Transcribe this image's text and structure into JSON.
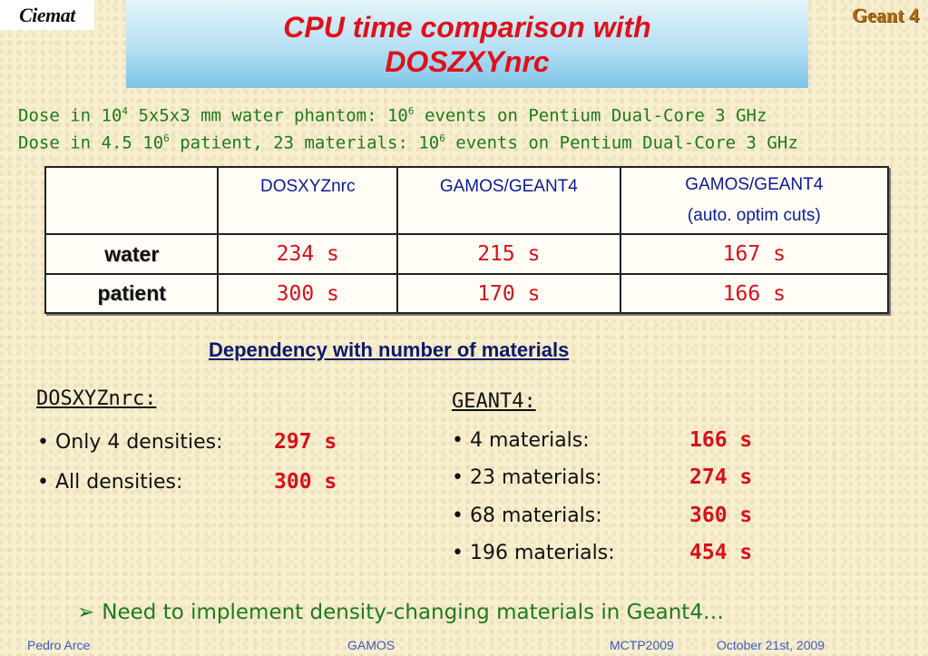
{
  "logo": "Ciemat",
  "geant_label": "Geant 4",
  "title": {
    "line1": "CPU time comparison with",
    "line2": "DOSZXYnrc"
  },
  "dose_lines": [
    {
      "pre": "Dose in 10",
      "sup": "4",
      "mid": " 5x5x3 mm water phantom: 10",
      "sup2": "6",
      "post": " events on Pentium Dual-Core 3 GHz"
    },
    {
      "pre": "Dose in 4.5 10",
      "sup": "6",
      "mid": " patient, 23 materials: 10",
      "sup2": "6",
      "post": " events on Pentium Dual-Core 3 GHz"
    }
  ],
  "table": {
    "headers": [
      "",
      "DOSXYZnrc",
      "GAMOS/GEANT4",
      "GAMOS/GEANT4",
      "(auto. optim cuts)"
    ],
    "rows": [
      {
        "label": "water",
        "values": [
          "234 s",
          "215 s",
          "167 s"
        ]
      },
      {
        "label": "patient",
        "values": [
          "300 s",
          "170 s",
          "166 s"
        ]
      }
    ]
  },
  "dependency_title": "Dependency with number of materials",
  "dosxyz": {
    "heading": "DOSXYZnrc:",
    "items": [
      {
        "label": "• Only 4 densities:",
        "value": "297 s"
      },
      {
        "label": "• All densities:",
        "value": "300 s"
      }
    ]
  },
  "geant4": {
    "heading": "GEANT4:",
    "items": [
      {
        "label": "• 4 materials:",
        "value": "166 s"
      },
      {
        "label": "• 23 materials:",
        "value": "274 s"
      },
      {
        "label": "• 68 materials:",
        "value": "360 s"
      },
      {
        "label": "• 196 materials:",
        "value": "454 s"
      }
    ]
  },
  "conclusion": {
    "arrow": "➢",
    "text": "Need to implement density-changing materials in Geant4…"
  },
  "footer": {
    "author": "Pedro Arce",
    "project": "GAMOS",
    "event": "MCTP2009",
    "date": "October 21st, 2009"
  }
}
